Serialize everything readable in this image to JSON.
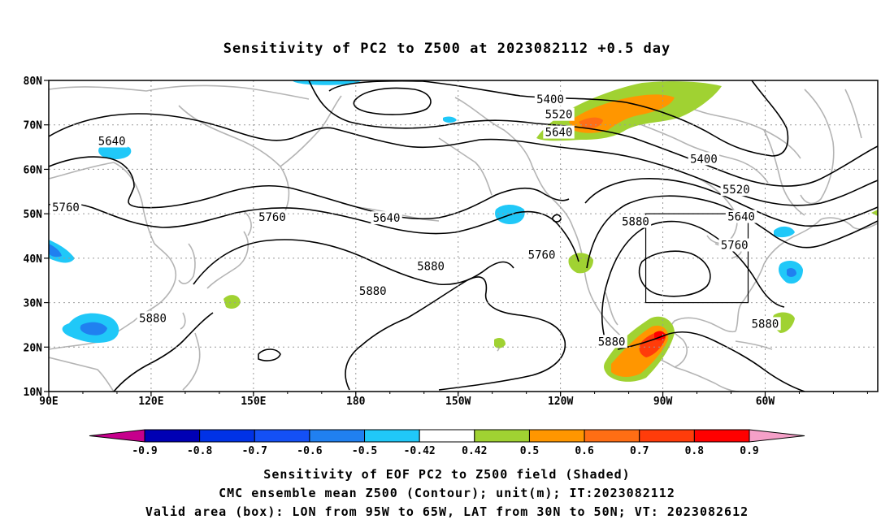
{
  "title": "Sensitivity of PC2 to Z500 at 2023082112 +0.5 day",
  "lat_labels": [
    "80N",
    "70N",
    "60N",
    "50N",
    "40N",
    "30N",
    "20N",
    "10N"
  ],
  "lon_labels": [
    "90E",
    "120E",
    "150E",
    "180",
    "150W",
    "120W",
    "90W",
    "60W"
  ],
  "contour_labels": [
    "5400",
    "5520",
    "5640",
    "5760",
    "5880"
  ],
  "contour_label_instances": [
    {
      "text": "5400",
      "lon": -123,
      "lat": 75.6
    },
    {
      "text": "5520",
      "lon": -120.5,
      "lat": 72.2
    },
    {
      "text": "5640",
      "lon": -120.5,
      "lat": 68.2
    },
    {
      "text": "5400",
      "lon": -78,
      "lat": 62.2
    },
    {
      "text": "5520",
      "lon": -68.5,
      "lat": 55.3
    },
    {
      "text": "5640",
      "lon": -67,
      "lat": 49.2
    },
    {
      "text": "5760",
      "lon": -69,
      "lat": 42.8
    },
    {
      "text": "5880",
      "lon": -98,
      "lat": 48.1
    },
    {
      "text": "5640",
      "lon": 108.5,
      "lat": 66.2
    },
    {
      "text": "5760",
      "lon": 95,
      "lat": 51.3
    },
    {
      "text": "5760",
      "lon": 155.5,
      "lat": 49.1
    },
    {
      "text": "5640",
      "lon": -171,
      "lat": 48.9
    },
    {
      "text": "5880",
      "lon": -158,
      "lat": 38.1
    },
    {
      "text": "5760",
      "lon": -125.5,
      "lat": 40.6
    },
    {
      "text": "5880",
      "lon": -175,
      "lat": 32.5
    },
    {
      "text": "5880",
      "lon": 120.5,
      "lat": 26.4
    },
    {
      "text": "5880",
      "lon": -105,
      "lat": 21.1
    },
    {
      "text": "5880",
      "lon": -60,
      "lat": 25.1
    }
  ],
  "colorbar": {
    "labels": [
      "-0.9",
      "-0.8",
      "-0.7",
      "-0.6",
      "-0.5",
      "-0.42",
      "0.42",
      "0.5",
      "0.6",
      "0.7",
      "0.8",
      "0.9"
    ],
    "colors": [
      "#c6008c",
      "#0000b4",
      "#0032e6",
      "#1450f5",
      "#2080f0",
      "#20c8f8",
      "#ffffff",
      "#a0d232",
      "#ff9600",
      "#ff6e14",
      "#ff3c0a",
      "#ff0000",
      "#f5a0c8"
    ]
  },
  "validity_box": {
    "lon_min": -95,
    "lon_max": -65,
    "lat_min": 30,
    "lat_max": 50
  },
  "footer": {
    "line1": "Sensitivity of EOF PC2 to Z500 field (Shaded)",
    "line2": "CMC ensemble mean Z500 (Contour); unit(m); IT:2023082112",
    "line3": "Valid area (box): LON from 95W to 65W, LAT from 30N to 50N; VT: 2023082612"
  },
  "colors": {
    "coast": "#b4b4b4",
    "contour": "#000000",
    "grid": "#999999"
  }
}
